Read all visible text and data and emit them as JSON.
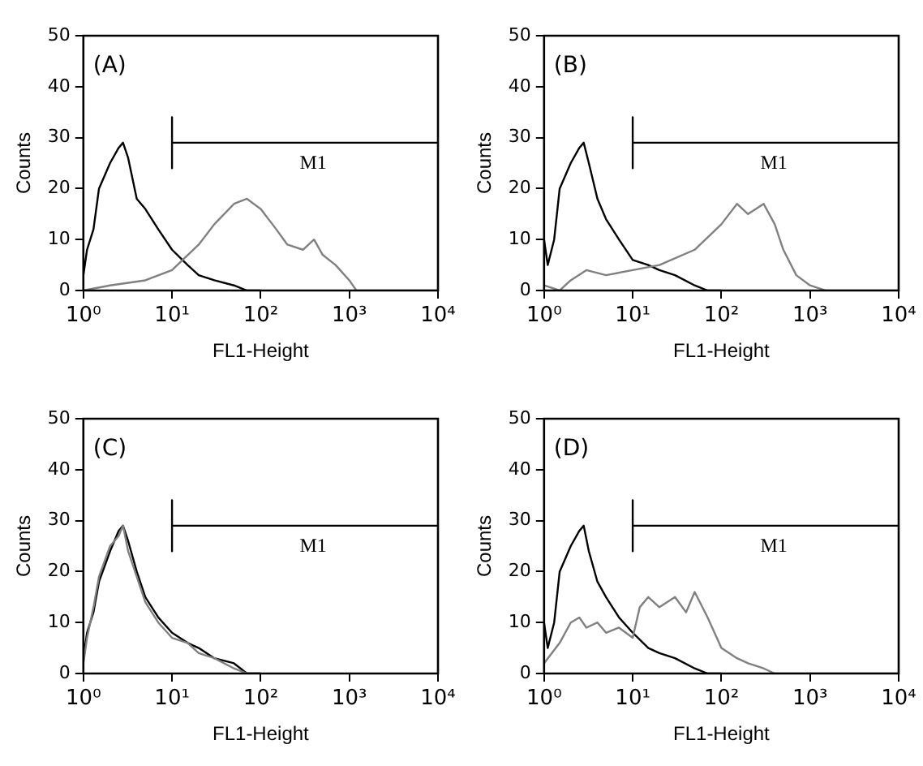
{
  "chart_data": [
    {
      "type": "line",
      "annotations": [
        "(A)"
      ],
      "xlabel": "FL1-Height",
      "ylabel": "Counts",
      "log": "x",
      "grid": false,
      "legend": false,
      "marker": "none",
      "xlim": [
        1,
        10000
      ],
      "ylim": [
        0,
        50
      ],
      "xticks": [
        {
          "value": 1,
          "label": "10⁰"
        },
        {
          "value": 10,
          "label": "10¹"
        },
        {
          "value": 100,
          "label": "10²"
        },
        {
          "value": 1000,
          "label": "10³"
        },
        {
          "value": 10000,
          "label": "10⁴"
        }
      ],
      "yticks": [
        0,
        10,
        20,
        30,
        40,
        50
      ],
      "series": [
        {
          "name": "M1",
          "color": "#000000",
          "x": [
            10,
            10,
            10,
            10000
          ],
          "values": [
            34,
            24,
            29,
            29
          ]
        },
        {
          "color": "#000000",
          "x": [
            1,
            1.1,
            1.3,
            1.5,
            2,
            2.5,
            2.8,
            3.2,
            4,
            5,
            7,
            10,
            15,
            20,
            30,
            50,
            70,
            100
          ],
          "values": [
            3,
            8,
            12,
            20,
            25,
            28,
            29,
            26,
            18,
            16,
            12,
            8,
            5,
            3,
            2,
            1,
            0,
            0
          ]
        },
        {
          "color": "#808080",
          "x": [
            1,
            2,
            5,
            10,
            20,
            30,
            50,
            70,
            100,
            150,
            200,
            300,
            400,
            500,
            700,
            1000,
            1200,
            10000
          ],
          "values": [
            0,
            1,
            2,
            4,
            9,
            13,
            17,
            18,
            16,
            12,
            9,
            8,
            10,
            7,
            5,
            2,
            0,
            0
          ]
        }
      ]
    },
    {
      "type": "line",
      "annotations": [
        "(B)"
      ],
      "xlabel": "FL1-Height",
      "ylabel": "Counts",
      "log": "x",
      "grid": false,
      "legend": false,
      "marker": "none",
      "xlim": [
        1,
        10000
      ],
      "ylim": [
        0,
        50
      ],
      "xticks": [
        {
          "value": 1,
          "label": "10⁰"
        },
        {
          "value": 10,
          "label": "10¹"
        },
        {
          "value": 100,
          "label": "10²"
        },
        {
          "value": 1000,
          "label": "10³"
        },
        {
          "value": 10000,
          "label": "10⁴"
        }
      ],
      "yticks": [
        0,
        10,
        20,
        30,
        40,
        50
      ],
      "series": [
        {
          "name": "M1",
          "color": "#000000",
          "x": [
            10,
            10,
            10,
            10000
          ],
          "values": [
            34,
            24,
            29,
            29
          ]
        },
        {
          "color": "#000000",
          "x": [
            1,
            1.1,
            1.3,
            1.5,
            2,
            2.5,
            2.8,
            3.2,
            4,
            5,
            7,
            10,
            15,
            20,
            30,
            50,
            70,
            100
          ],
          "values": [
            10,
            5,
            10,
            20,
            25,
            28,
            29,
            25,
            18,
            14,
            10,
            6,
            5,
            4,
            3,
            1,
            0,
            0
          ]
        },
        {
          "color": "#808080",
          "x": [
            1,
            1.5,
            2,
            3,
            5,
            10,
            20,
            50,
            100,
            150,
            200,
            300,
            400,
            500,
            700,
            1000,
            1500,
            10000
          ],
          "values": [
            1,
            0,
            2,
            4,
            3,
            4,
            5,
            8,
            13,
            17,
            15,
            17,
            13,
            8,
            3,
            1,
            0,
            0
          ]
        }
      ]
    },
    {
      "type": "line",
      "annotations": [
        "(C)"
      ],
      "xlabel": "FL1-Height",
      "ylabel": "Counts",
      "log": "x",
      "grid": false,
      "legend": false,
      "marker": "none",
      "xlim": [
        1,
        10000
      ],
      "ylim": [
        0,
        50
      ],
      "xticks": [
        {
          "value": 1,
          "label": "10⁰"
        },
        {
          "value": 10,
          "label": "10¹"
        },
        {
          "value": 100,
          "label": "10²"
        },
        {
          "value": 1000,
          "label": "10³"
        },
        {
          "value": 10000,
          "label": "10⁴"
        }
      ],
      "yticks": [
        0,
        10,
        20,
        30,
        40,
        50
      ],
      "series": [
        {
          "name": "M1",
          "color": "#000000",
          "x": [
            10,
            10,
            10,
            10000
          ],
          "values": [
            34,
            24,
            29,
            29
          ]
        },
        {
          "color": "#000000",
          "x": [
            1,
            1.1,
            1.3,
            1.5,
            2,
            2.5,
            2.8,
            3.2,
            4,
            5,
            7,
            10,
            15,
            20,
            30,
            50,
            70,
            100
          ],
          "values": [
            3,
            8,
            12,
            18,
            24,
            28,
            29,
            26,
            20,
            15,
            11,
            8,
            6,
            5,
            3,
            2,
            0,
            0
          ]
        },
        {
          "color": "#808080",
          "x": [
            1,
            1.1,
            1.3,
            1.5,
            2,
            2.5,
            2.8,
            3.2,
            4,
            5,
            7,
            10,
            15,
            20,
            30,
            50,
            70,
            100
          ],
          "values": [
            2,
            7,
            13,
            19,
            25,
            27,
            29,
            24,
            19,
            14,
            10,
            7,
            6,
            4,
            3,
            1,
            0,
            0
          ]
        }
      ]
    },
    {
      "type": "line",
      "annotations": [
        "(D)"
      ],
      "xlabel": "FL1-Height",
      "ylabel": "Counts",
      "log": "x",
      "grid": false,
      "legend": false,
      "marker": "none",
      "xlim": [
        1,
        10000
      ],
      "ylim": [
        0,
        50
      ],
      "xticks": [
        {
          "value": 1,
          "label": "10⁰"
        },
        {
          "value": 10,
          "label": "10¹"
        },
        {
          "value": 100,
          "label": "10²"
        },
        {
          "value": 1000,
          "label": "10³"
        },
        {
          "value": 10000,
          "label": "10⁴"
        }
      ],
      "yticks": [
        0,
        10,
        20,
        30,
        40,
        50
      ],
      "series": [
        {
          "name": "M1",
          "color": "#000000",
          "x": [
            10,
            10,
            10,
            10000
          ],
          "values": [
            34,
            24,
            29,
            29
          ]
        },
        {
          "color": "#000000",
          "x": [
            1,
            1.1,
            1.3,
            1.5,
            2,
            2.5,
            2.8,
            3.2,
            4,
            5,
            7,
            10,
            15,
            20,
            30,
            50,
            70,
            100
          ],
          "values": [
            10,
            5,
            10,
            20,
            25,
            28,
            29,
            24,
            18,
            15,
            11,
            8,
            5,
            4,
            3,
            1,
            0,
            0
          ]
        },
        {
          "color": "#808080",
          "x": [
            1,
            1.5,
            2,
            2.5,
            3,
            4,
            5,
            7,
            10,
            12,
            15,
            20,
            30,
            40,
            50,
            70,
            100,
            150,
            200,
            300,
            400,
            10000
          ],
          "values": [
            2,
            6,
            10,
            11,
            9,
            10,
            8,
            9,
            7,
            13,
            15,
            13,
            15,
            12,
            16,
            11,
            5,
            3,
            2,
            1,
            0,
            0
          ]
        }
      ]
    }
  ]
}
